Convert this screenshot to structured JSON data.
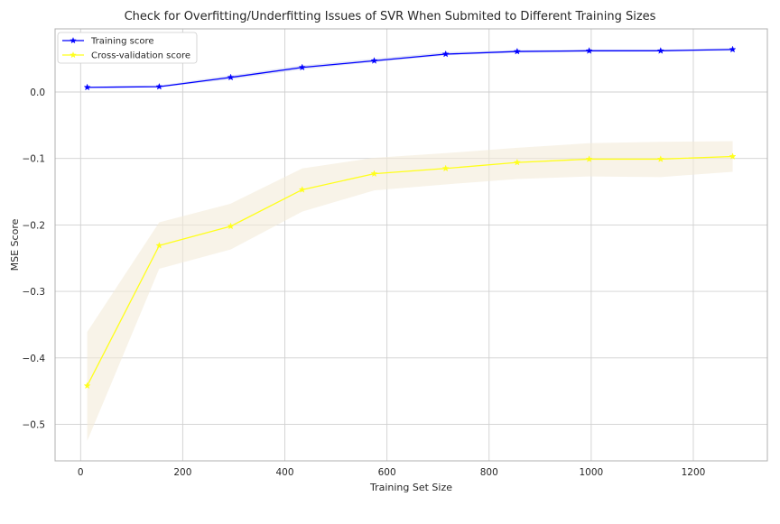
{
  "chart_data": {
    "type": "line",
    "title": "Check for Overfitting/Underfitting Issues of SVR When Submited to Different Training Sizes",
    "xlabel": "Training Set Size",
    "ylabel": "MSE Score",
    "xlim": [
      -50,
      1345
    ],
    "ylim": [
      -0.555,
      0.095
    ],
    "grid": true,
    "legend_position": "top-left",
    "x_ticks": [
      0,
      200,
      400,
      600,
      800,
      1000,
      1200
    ],
    "y_ticks": [
      0.0,
      -0.1,
      -0.2,
      -0.3,
      -0.4,
      -0.5
    ],
    "x_tick_labels": [
      "0",
      "200",
      "400",
      "600",
      "800",
      "1000",
      "1200"
    ],
    "y_tick_labels": [
      "0.0",
      "−0.1",
      "−0.2",
      "−0.3",
      "−0.4",
      "−0.5"
    ],
    "x": [
      13,
      154,
      294,
      434,
      575,
      715,
      855,
      996,
      1136,
      1277
    ],
    "series": [
      {
        "name": "Training score",
        "color": "#0000ff",
        "band_color": "#cfd4ee",
        "marker": "star",
        "values": [
          0.007,
          0.008,
          0.022,
          0.037,
          0.047,
          0.057,
          0.061,
          0.062,
          0.062,
          0.064
        ],
        "lower": [
          0.006,
          0.007,
          0.019,
          0.034,
          0.045,
          0.055,
          0.059,
          0.06,
          0.061,
          0.062
        ],
        "upper": [
          0.008,
          0.01,
          0.025,
          0.04,
          0.05,
          0.06,
          0.063,
          0.064,
          0.064,
          0.066
        ]
      },
      {
        "name": "Cross-validation score",
        "color": "#ffff1a",
        "band_color": "#f3ebd8",
        "marker": "star",
        "values": [
          -0.442,
          -0.231,
          -0.202,
          -0.147,
          -0.123,
          -0.115,
          -0.106,
          -0.101,
          -0.101,
          -0.097
        ],
        "lower": [
          -0.525,
          -0.266,
          -0.237,
          -0.18,
          -0.148,
          -0.139,
          -0.131,
          -0.127,
          -0.128,
          -0.12
        ],
        "upper": [
          -0.361,
          -0.196,
          -0.168,
          -0.115,
          -0.099,
          -0.092,
          -0.084,
          -0.077,
          -0.075,
          -0.074
        ]
      }
    ]
  },
  "colors": {
    "background": "#ffffff",
    "grid": "#d0d0d0",
    "spine": "#b0b0b0",
    "text": "#262626"
  }
}
